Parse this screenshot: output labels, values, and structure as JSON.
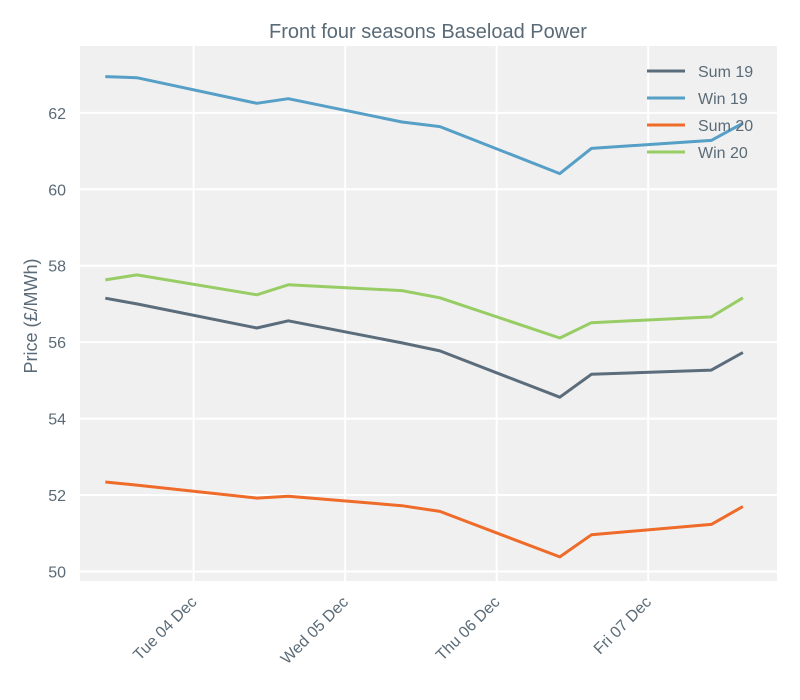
{
  "chart_data": {
    "type": "line",
    "title": "Front four seasons Baseload Power",
    "xlabel": "",
    "ylabel": "Price (£/MWh)",
    "ylim": [
      49.75,
      63.75
    ],
    "yticks": [
      50,
      52,
      54,
      56,
      58,
      60,
      62
    ],
    "x_range": [
      0,
      4.6
    ],
    "xticks": [
      {
        "label": "Tue 04 Dec",
        "x": 0.75
      },
      {
        "label": "Wed 05 Dec",
        "x": 1.75
      },
      {
        "label": "Thu 06 Dec",
        "x": 2.75
      },
      {
        "label": "Fri 07 Dec",
        "x": 3.75
      }
    ],
    "legend_position": "top-right",
    "grid": true,
    "x": [
      0.1667,
      0.375,
      1.1667,
      1.375,
      2.125,
      2.375,
      3.1667,
      3.375,
      4.1667,
      4.375
    ],
    "series": [
      {
        "name": "Sum 19",
        "color": "#5b6c7b",
        "values": [
          57.15,
          57.0,
          56.37,
          56.56,
          55.98,
          55.77,
          54.56,
          55.16,
          55.27,
          55.73
        ]
      },
      {
        "name": "Win 19",
        "color": "#569fc6",
        "values": [
          62.95,
          62.92,
          62.25,
          62.37,
          61.76,
          61.64,
          60.41,
          61.07,
          61.28,
          61.73
        ]
      },
      {
        "name": "Sum 20",
        "color": "#ee6b29",
        "values": [
          52.34,
          52.26,
          51.92,
          51.97,
          51.72,
          51.57,
          50.38,
          50.96,
          51.23,
          51.7
        ]
      },
      {
        "name": "Win 20",
        "color": "#97cd64",
        "values": [
          57.63,
          57.76,
          57.24,
          57.5,
          57.35,
          57.16,
          56.11,
          56.51,
          56.66,
          57.16
        ]
      }
    ]
  }
}
